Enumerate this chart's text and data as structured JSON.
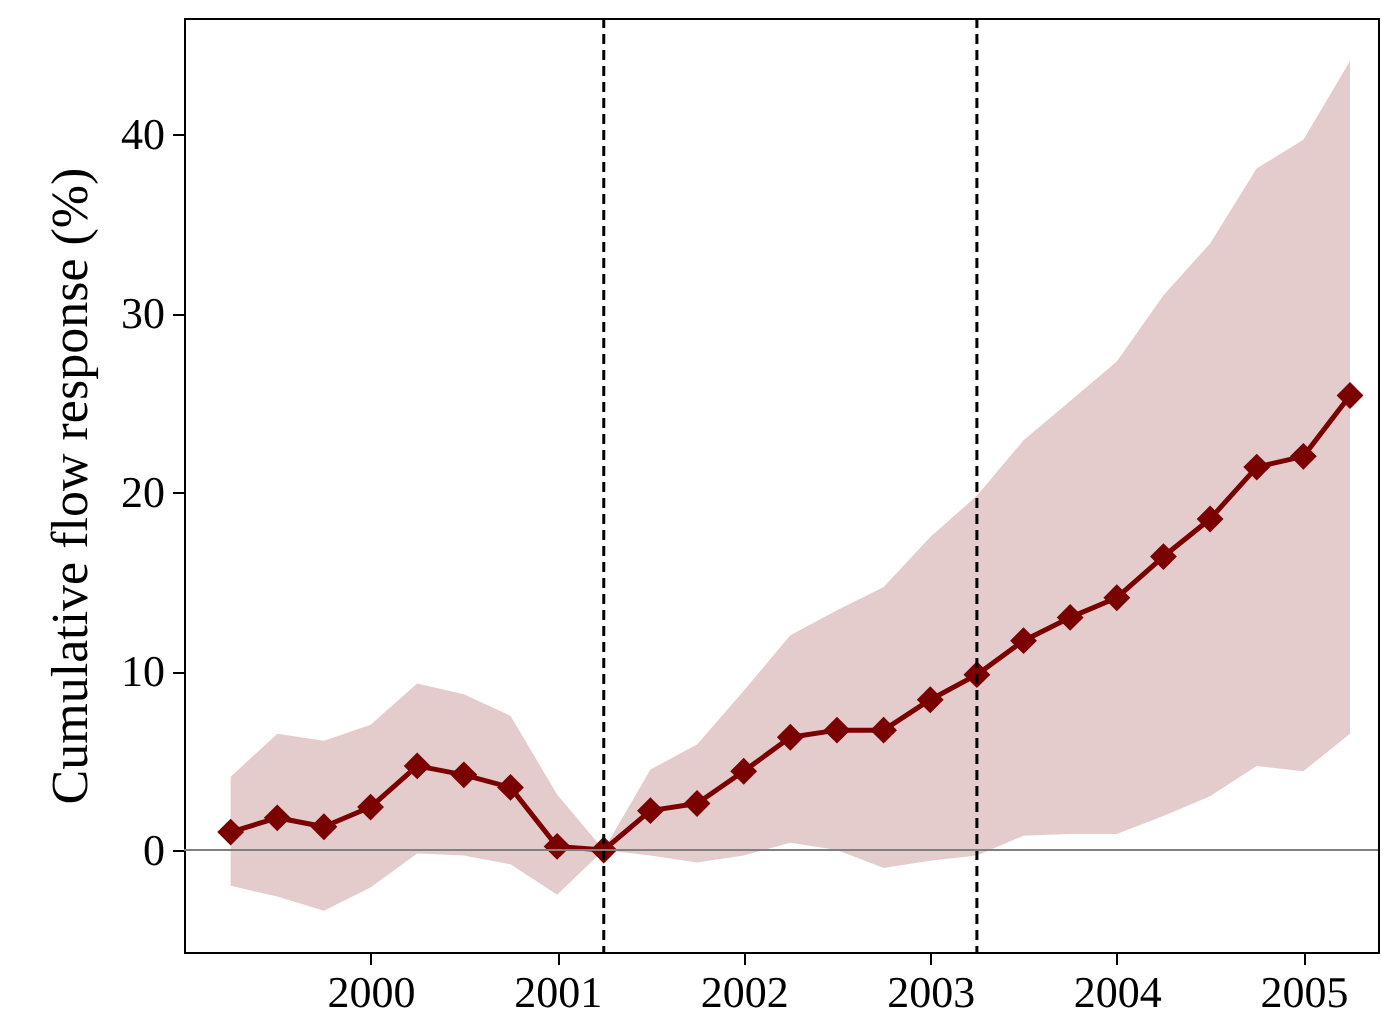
{
  "chart_data": {
    "type": "line",
    "ylabel": "Cumulative flow response (%)",
    "x": [
      1999.25,
      1999.5,
      1999.75,
      2000,
      2000.25,
      2000.5,
      2000.75,
      2001,
      2001.25,
      2001.5,
      2001.75,
      2002,
      2002.25,
      2002.5,
      2002.75,
      2003,
      2003.25,
      2003.5,
      2003.75,
      2004,
      2004.25,
      2004.5,
      2004.75,
      2005,
      2005.25
    ],
    "series": [
      {
        "color": "#7b0000",
        "values": [
          1.0,
          1.8,
          1.3,
          2.4,
          4.7,
          4.2,
          3.5,
          0.2,
          0,
          2.2,
          2.6,
          4.4,
          6.3,
          6.7,
          6.7,
          8.4,
          9.8,
          11.7,
          13.0,
          14.1,
          16.4,
          18.5,
          21.4,
          22.0,
          25.4
        ],
        "lower": [
          -2.0,
          -2.6,
          -3.4,
          -2.1,
          -0.2,
          -0.3,
          -0.8,
          -2.5,
          0,
          -0.3,
          -0.7,
          -0.3,
          0.4,
          0,
          -1.0,
          -0.6,
          -0.3,
          0.8,
          0.9,
          0.9,
          1.9,
          3.0,
          4.7,
          4.4,
          6.5
        ],
        "upper": [
          4.1,
          6.5,
          6.1,
          7.0,
          9.3,
          8.7,
          7.5,
          3.1,
          0,
          4.5,
          5.9,
          8.9,
          12.0,
          13.4,
          14.7,
          17.5,
          19.8,
          22.9,
          25.1,
          27.3,
          31.0,
          33.9,
          38.1,
          39.7,
          44.1
        ]
      }
    ],
    "xlim": [
      1999.0,
      2005.4
    ],
    "xticks": [
      2000,
      2001,
      2002,
      2003,
      2004,
      2005
    ],
    "ylim": [
      -5.7,
      46.5
    ],
    "yticks": [
      0,
      10,
      20,
      30,
      40
    ],
    "ref_lines": [
      {
        "axis": "x",
        "value": 2001.25,
        "color": "#000000",
        "line_style": "dashed"
      },
      {
        "axis": "x",
        "value": 2003.25,
        "color": "#000000",
        "line_style": "dashed"
      },
      {
        "axis": "y",
        "value": 0,
        "color": "#808080",
        "line_style": "solid"
      }
    ],
    "grid": false,
    "marker": "diamond",
    "line_style": "solid"
  }
}
